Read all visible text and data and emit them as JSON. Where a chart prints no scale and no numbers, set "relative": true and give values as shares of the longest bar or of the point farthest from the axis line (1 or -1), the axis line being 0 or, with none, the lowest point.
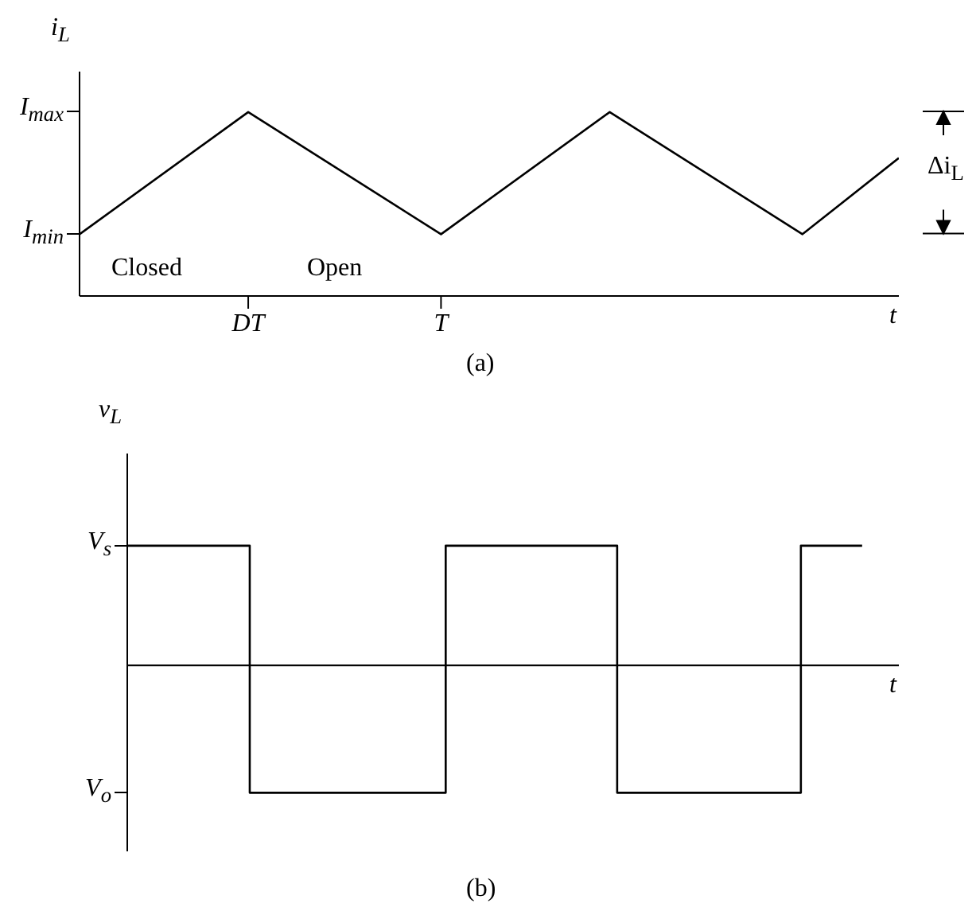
{
  "chart_data": [
    {
      "type": "line",
      "relative": true,
      "ylabel": "i$_{L}$",
      "xlabel": "t",
      "categories": [
        null,
        null,
        null,
        null,
        null,
        null,
        null,
        "DT",
        null,
        null,
        null,
        null,
        null,
        null,
        null,
        "T",
        null,
        null,
        null,
        null,
        null,
        null,
        null,
        null,
        null,
        null,
        null,
        null,
        null,
        null,
        null,
        null,
        null,
        null,
        null
      ],
      "series": [
        {
          "color": "#000000",
          "values": [
            0.336,
            null,
            null,
            null,
            null,
            null,
            null,
            1,
            null,
            null,
            null,
            null,
            null,
            null,
            null,
            0.336,
            null,
            null,
            null,
            null,
            null,
            null,
            1,
            null,
            null,
            null,
            null,
            null,
            null,
            null,
            0.336,
            null,
            null,
            null,
            0.75
          ]
        }
      ],
      "annotations": [
        "I$_{max}$",
        "I$_{min}$",
        "Closed",
        "Open",
        "Δi$_{L}$",
        "(a)"
      ],
      "marker": "none",
      "line_style": "solid"
    },
    {
      "type": "step",
      "relative": true,
      "ylabel": "v$_{L}$",
      "xlabel": "t",
      "categories": [
        null,
        null,
        null,
        null,
        null,
        null,
        null,
        null,
        null,
        null,
        null,
        null,
        null,
        null,
        null,
        null,
        null,
        null,
        null,
        null,
        null,
        null,
        null,
        null,
        null,
        null,
        null,
        null,
        null,
        null,
        null,
        null,
        null,
        null,
        null,
        null,
        null,
        null,
        null,
        null,
        null,
        null,
        null,
        null,
        null,
        null,
        null,
        null,
        null,
        null,
        null,
        null,
        null,
        null,
        null,
        null,
        null,
        null,
        null,
        null,
        null,
        null,
        null,
        null
      ],
      "series": [
        {
          "color": "#000000",
          "values": [
            0.94,
            null,
            null,
            null,
            null,
            null,
            null,
            null,
            null,
            null,
            -1,
            null,
            null,
            null,
            null,
            null,
            null,
            null,
            null,
            null,
            null,
            null,
            null,
            null,
            null,
            null,
            0.94,
            null,
            null,
            null,
            null,
            null,
            null,
            null,
            null,
            null,
            null,
            null,
            null,
            null,
            -1,
            null,
            null,
            null,
            null,
            null,
            null,
            null,
            null,
            null,
            null,
            null,
            null,
            null,
            null,
            0.94,
            null,
            null,
            null,
            null,
            0.94,
            null,
            null,
            null
          ]
        }
      ],
      "annotations": [
        "V$_{s}$",
        "V$_{o}$",
        "(b)"
      ],
      "marker": "none",
      "line_style": "solid"
    }
  ]
}
